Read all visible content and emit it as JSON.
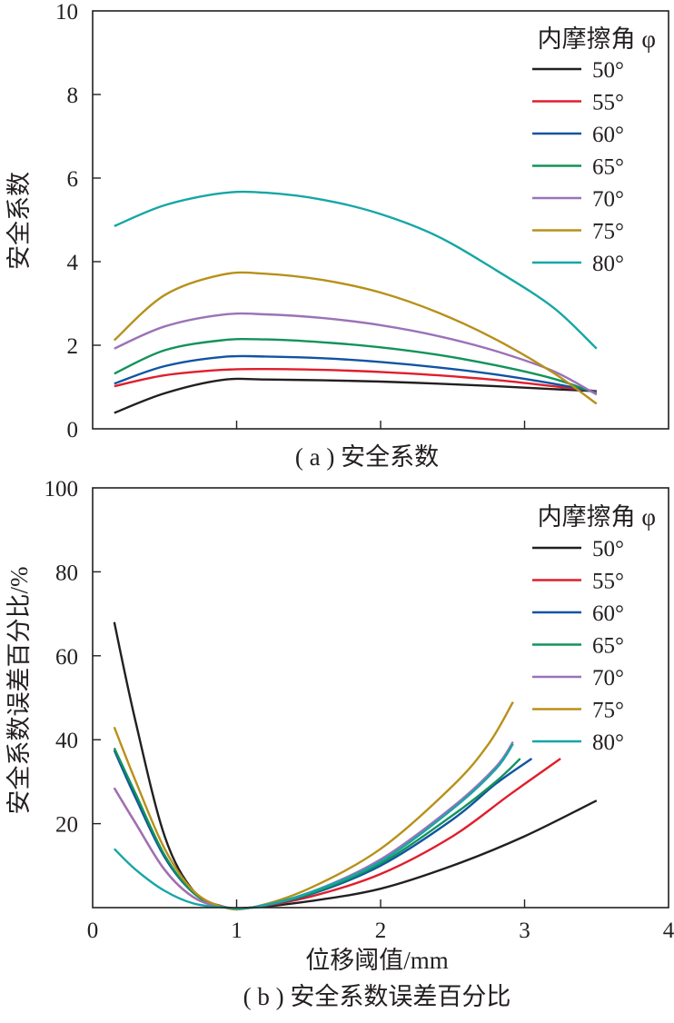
{
  "chart_data": [
    {
      "id": "a",
      "type": "line",
      "caption": "( a ) 安全系数",
      "ylabel": "安全系数",
      "xlabel": "",
      "xlim": [
        0,
        4
      ],
      "ylim": [
        0,
        10
      ],
      "x_ticks": [
        1,
        2,
        3
      ],
      "y_ticks": [
        0,
        2,
        4,
        6,
        8,
        10
      ],
      "y_tick_labels": [
        "0",
        "2",
        "4",
        "6",
        "8",
        "10"
      ],
      "legend": {
        "title": "内摩擦角 φ",
        "position": "top-right"
      },
      "series": [
        {
          "name": "50°",
          "color": "#231f20",
          "points": [
            [
              0.15,
              0.38
            ],
            [
              0.5,
              0.85
            ],
            [
              0.9,
              1.17
            ],
            [
              1.2,
              1.18
            ],
            [
              1.6,
              1.16
            ],
            [
              2,
              1.13
            ],
            [
              2.4,
              1.08
            ],
            [
              2.8,
              1.02
            ],
            [
              3.2,
              0.95
            ],
            [
              3.5,
              0.9
            ]
          ]
        },
        {
          "name": "55°",
          "color": "#e01e2d",
          "points": [
            [
              0.15,
              1.02
            ],
            [
              0.5,
              1.28
            ],
            [
              0.9,
              1.41
            ],
            [
              1.2,
              1.43
            ],
            [
              1.6,
              1.41
            ],
            [
              2,
              1.36
            ],
            [
              2.4,
              1.28
            ],
            [
              2.8,
              1.17
            ],
            [
              3.2,
              1.02
            ],
            [
              3.5,
              0.9
            ]
          ]
        },
        {
          "name": "60°",
          "color": "#1054a3",
          "points": [
            [
              0.15,
              1.08
            ],
            [
              0.5,
              1.5
            ],
            [
              0.9,
              1.72
            ],
            [
              1.2,
              1.73
            ],
            [
              1.6,
              1.69
            ],
            [
              2,
              1.6
            ],
            [
              2.4,
              1.47
            ],
            [
              2.8,
              1.3
            ],
            [
              3.2,
              1.08
            ],
            [
              3.5,
              0.88
            ]
          ]
        },
        {
          "name": "65°",
          "color": "#12935a",
          "points": [
            [
              0.15,
              1.32
            ],
            [
              0.5,
              1.88
            ],
            [
              0.9,
              2.12
            ],
            [
              1.2,
              2.14
            ],
            [
              1.6,
              2.07
            ],
            [
              2,
              1.95
            ],
            [
              2.4,
              1.77
            ],
            [
              2.8,
              1.52
            ],
            [
              3.2,
              1.2
            ],
            [
              3.5,
              0.85
            ]
          ]
        },
        {
          "name": "70°",
          "color": "#9b72b8",
          "points": [
            [
              0.15,
              1.92
            ],
            [
              0.5,
              2.45
            ],
            [
              0.9,
              2.73
            ],
            [
              1.2,
              2.74
            ],
            [
              1.6,
              2.65
            ],
            [
              2,
              2.48
            ],
            [
              2.4,
              2.22
            ],
            [
              2.8,
              1.86
            ],
            [
              3.2,
              1.38
            ],
            [
              3.5,
              0.82
            ]
          ]
        },
        {
          "name": "75°",
          "color": "#b8901a",
          "points": [
            [
              0.15,
              2.12
            ],
            [
              0.5,
              3.2
            ],
            [
              0.9,
              3.69
            ],
            [
              1.2,
              3.71
            ],
            [
              1.6,
              3.56
            ],
            [
              2,
              3.26
            ],
            [
              2.4,
              2.78
            ],
            [
              2.8,
              2.14
            ],
            [
              3.2,
              1.34
            ],
            [
              3.5,
              0.6
            ]
          ]
        },
        {
          "name": "80°",
          "color": "#16a6a6",
          "points": [
            [
              0.15,
              4.85
            ],
            [
              0.5,
              5.35
            ],
            [
              0.9,
              5.64
            ],
            [
              1.2,
              5.65
            ],
            [
              1.6,
              5.48
            ],
            [
              2,
              5.14
            ],
            [
              2.4,
              4.6
            ],
            [
              2.8,
              3.8
            ],
            [
              3.2,
              2.9
            ],
            [
              3.5,
              1.92
            ]
          ]
        }
      ]
    },
    {
      "id": "b",
      "type": "line",
      "caption": "( b ) 安全系数误差百分比",
      "ylabel": "安全系数误差百分比/%",
      "xlabel": "位移阈值/mm",
      "xlim": [
        0,
        4
      ],
      "ylim": [
        0,
        100
      ],
      "x_ticks": [
        0,
        1,
        2,
        3,
        4
      ],
      "x_tick_labels": [
        "0",
        "1",
        "2",
        "3",
        "4"
      ],
      "y_ticks": [
        20,
        40,
        60,
        80,
        100
      ],
      "y_tick_labels": [
        "20",
        "40",
        "60",
        "80",
        "100"
      ],
      "legend": {
        "title": "内摩擦角 φ",
        "position": "top-right"
      },
      "series": [
        {
          "name": "50°",
          "color": "#231f20",
          "points": [
            [
              0.15,
              68
            ],
            [
              0.3,
              44
            ],
            [
              0.5,
              17
            ],
            [
              0.7,
              4
            ],
            [
              0.9,
              0.3
            ],
            [
              1.1,
              0
            ],
            [
              1.5,
              1.5
            ],
            [
              2,
              4.5
            ],
            [
              2.5,
              10
            ],
            [
              3,
              17
            ],
            [
              3.5,
              25.5
            ]
          ]
        },
        {
          "name": "55°",
          "color": "#e01e2d",
          "points": [
            [
              0.15,
              28.5
            ],
            [
              0.3,
              20
            ],
            [
              0.5,
              9
            ],
            [
              0.7,
              2.5
            ],
            [
              0.9,
              0.2
            ],
            [
              1.1,
              0
            ],
            [
              1.5,
              2.5
            ],
            [
              2,
              8
            ],
            [
              2.5,
              17
            ],
            [
              2.9,
              27
            ],
            [
              3.25,
              35.5
            ]
          ]
        },
        {
          "name": "60°",
          "color": "#1054a3",
          "points": [
            [
              0.15,
              37.5
            ],
            [
              0.3,
              26
            ],
            [
              0.5,
              12
            ],
            [
              0.7,
              3.5
            ],
            [
              0.9,
              0.2
            ],
            [
              1.1,
              0
            ],
            [
              1.5,
              3
            ],
            [
              2,
              10
            ],
            [
              2.5,
              21
            ],
            [
              2.8,
              29.5
            ],
            [
              3.05,
              35.5
            ]
          ]
        },
        {
          "name": "65°",
          "color": "#12935a",
          "points": [
            [
              0.15,
              38
            ],
            [
              0.3,
              27
            ],
            [
              0.5,
              12.5
            ],
            [
              0.7,
              3.5
            ],
            [
              0.9,
              0.2
            ],
            [
              1.1,
              0
            ],
            [
              1.5,
              3.2
            ],
            [
              2,
              10.5
            ],
            [
              2.5,
              22
            ],
            [
              2.8,
              30
            ],
            [
              2.97,
              35.5
            ]
          ]
        },
        {
          "name": "70°",
          "color": "#9b72b8",
          "points": [
            [
              0.15,
              28.5
            ],
            [
              0.3,
              20
            ],
            [
              0.5,
              9
            ],
            [
              0.7,
              2.5
            ],
            [
              0.9,
              0.2
            ],
            [
              1.1,
              0
            ],
            [
              1.5,
              3.5
            ],
            [
              2,
              11.5
            ],
            [
              2.5,
              24
            ],
            [
              2.8,
              33.5
            ],
            [
              2.92,
              39.5
            ]
          ]
        },
        {
          "name": "75°",
          "color": "#b8901a",
          "points": [
            [
              0.15,
              43
            ],
            [
              0.3,
              30
            ],
            [
              0.5,
              14
            ],
            [
              0.7,
              4
            ],
            [
              0.9,
              0.2
            ],
            [
              1.1,
              0
            ],
            [
              1.5,
              4.5
            ],
            [
              2,
              14
            ],
            [
              2.5,
              29
            ],
            [
              2.75,
              39
            ],
            [
              2.92,
              49
            ]
          ]
        },
        {
          "name": "80°",
          "color": "#16a6a6",
          "points": [
            [
              0.15,
              14
            ],
            [
              0.3,
              9
            ],
            [
              0.5,
              4
            ],
            [
              0.7,
              1
            ],
            [
              0.9,
              0.1
            ],
            [
              1.1,
              0
            ],
            [
              1.5,
              3.5
            ],
            [
              2,
              11
            ],
            [
              2.5,
              23.5
            ],
            [
              2.8,
              33
            ],
            [
              2.92,
              39
            ]
          ]
        }
      ]
    }
  ]
}
